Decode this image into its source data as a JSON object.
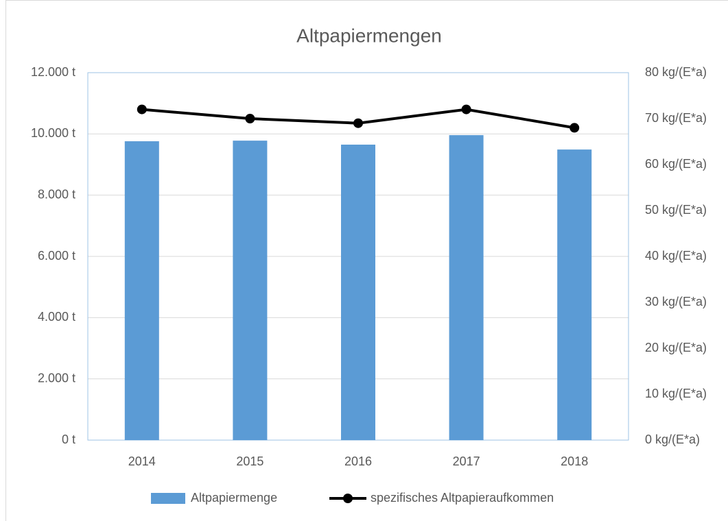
{
  "chart_data": {
    "type": "bar",
    "title": "Altpapiermengen",
    "categories": [
      "2014",
      "2015",
      "2016",
      "2017",
      "2018"
    ],
    "series": [
      {
        "name": "Altpapiermenge",
        "type": "bar",
        "color": "#5b9bd5",
        "values": [
          9760,
          9780,
          9650,
          9960,
          9490
        ]
      },
      {
        "name": "spezifisches Altpapieraufkommen",
        "type": "line",
        "axis": "y2",
        "color": "#000000",
        "values": [
          72,
          70,
          69,
          72,
          68
        ]
      }
    ],
    "ylim": [
      0,
      12000
    ],
    "yticks": [
      {
        "value": 0,
        "label": "0 t"
      },
      {
        "value": 2000,
        "label": "2.000 t"
      },
      {
        "value": 4000,
        "label": "4.000 t"
      },
      {
        "value": 6000,
        "label": "6.000 t"
      },
      {
        "value": 8000,
        "label": "8.000 t"
      },
      {
        "value": 10000,
        "label": "10.000 t"
      },
      {
        "value": 12000,
        "label": "12.000 t"
      }
    ],
    "y2lim": [
      0,
      80
    ],
    "y2ticks": [
      {
        "value": 0,
        "label": "0 kg/(E*a)"
      },
      {
        "value": 10,
        "label": "10 kg/(E*a)"
      },
      {
        "value": 20,
        "label": "20 kg/(E*a)"
      },
      {
        "value": 30,
        "label": "30 kg/(E*a)"
      },
      {
        "value": 40,
        "label": "40 kg/(E*a)"
      },
      {
        "value": 50,
        "label": "50 kg/(E*a)"
      },
      {
        "value": 60,
        "label": "60 kg/(E*a)"
      },
      {
        "value": 70,
        "label": "70 kg/(E*a)"
      },
      {
        "value": 80,
        "label": "80 kg/(E*a)"
      }
    ],
    "grid": true,
    "legend": "bottom"
  }
}
